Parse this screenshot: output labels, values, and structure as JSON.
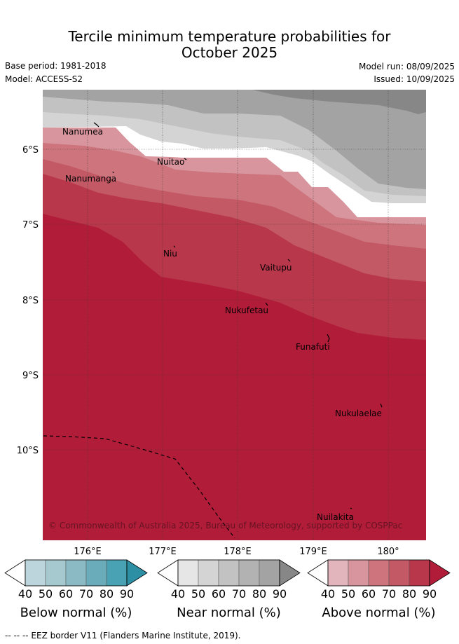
{
  "header": {
    "title_line1": "Tercile minimum temperature probabilities for",
    "title_line2": "October 2025",
    "base_period": "Base period: 1981-2018",
    "model": "Model: ACCESS-S2",
    "model_run": "Model run: 08/09/2025",
    "issued": "Issued: 10/09/2025"
  },
  "map": {
    "lat_ticks": [
      "6°S",
      "7°S",
      "8°S",
      "9°S",
      "10°S"
    ],
    "lon_ticks": [
      "176°E",
      "177°E",
      "178°E",
      "179°E",
      "180°"
    ],
    "places": [
      "Nanumea",
      "Nuitao",
      "Nanumanga",
      "Niu",
      "Vaitupu",
      "Nukufetau",
      "Funafuti",
      "Nukulaelae",
      "Nuilakita"
    ],
    "copyright": "© Commonwealth of Australia 2025, Bureau of Meteorology, supported by COSPPac"
  },
  "colorbars": [
    {
      "title": "Below normal (%)",
      "labels": [
        "40",
        "50",
        "60",
        "70",
        "80",
        "90"
      ],
      "colors": [
        "#ffffff",
        "#bcd5dc",
        "#a5c9cf",
        "#8bbac5",
        "#6bacbb",
        "#48a2b3",
        "#2c8fa3"
      ]
    },
    {
      "title": "Near normal (%)",
      "labels": [
        "40",
        "50",
        "60",
        "70",
        "80",
        "90"
      ],
      "colors": [
        "#ffffff",
        "#e6e6e6",
        "#d4d4d4",
        "#c2c2c2",
        "#b2b2b2",
        "#a3a3a3",
        "#878787"
      ]
    },
    {
      "title": "Above normal (%)",
      "labels": [
        "40",
        "50",
        "60",
        "70",
        "80",
        "90"
      ],
      "colors": [
        "#ffffff",
        "#e2b5bc",
        "#d8959d",
        "#cd747d",
        "#c35965",
        "#b9374b",
        "#b11d39"
      ]
    }
  ],
  "footnote": "--  --  -- EEZ border V11 (Flanders Marine Institute, 2019)."
}
